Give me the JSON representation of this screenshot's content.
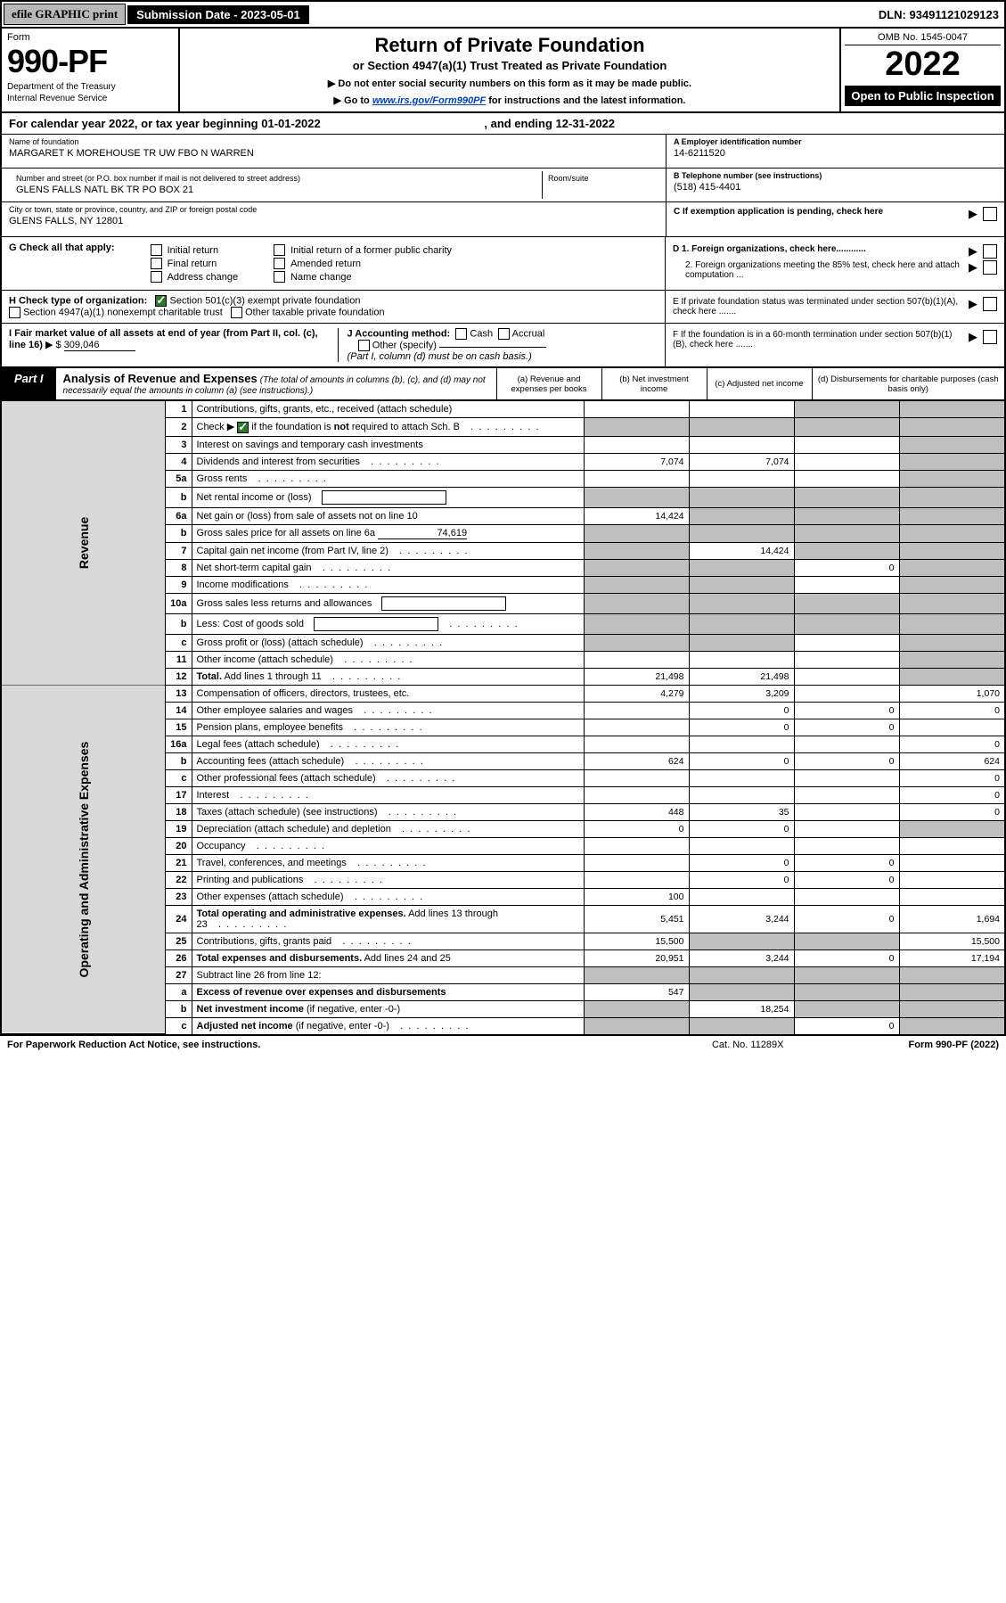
{
  "colors": {
    "black": "#000000",
    "white": "#ffffff",
    "gray_btn": "#b8b8b8",
    "gray_shade": "#bfbfbf",
    "gray_side": "#d8d8d8",
    "green_check": "#2a7a2a",
    "link_blue": "#0040b8"
  },
  "topbar": {
    "efile": "efile GRAPHIC print",
    "submission": "Submission Date - 2023-05-01",
    "dln": "DLN: 93491121029123"
  },
  "header": {
    "form_word": "Form",
    "form_num": "990-PF",
    "dept": "Department of the Treasury",
    "irs": "Internal Revenue Service",
    "title": "Return of Private Foundation",
    "subtitle": "or Section 4947(a)(1) Trust Treated as Private Foundation",
    "instr1": "▶ Do not enter social security numbers on this form as it may be made public.",
    "instr2_pre": "▶ Go to ",
    "instr2_link": "www.irs.gov/Form990PF",
    "instr2_post": " for instructions and the latest information.",
    "omb": "OMB No. 1545-0047",
    "year": "2022",
    "open": "Open to Public Inspection"
  },
  "calyear": {
    "text_pre": "For calendar year 2022, or tax year beginning ",
    "begin": "01-01-2022",
    "mid": " , and ending ",
    "end": "12-31-2022"
  },
  "foundation": {
    "name_lab": "Name of foundation",
    "name": "MARGARET K MOREHOUSE TR UW FBO N WARREN",
    "addr_lab": "Number and street (or P.O. box number if mail is not delivered to street address)",
    "addr": "GLENS FALLS NATL BK TR PO BOX 21",
    "room_lab": "Room/suite",
    "city_lab": "City or town, state or province, country, and ZIP or foreign postal code",
    "city": "GLENS FALLS, NY  12801",
    "ein_lab": "A Employer identification number",
    "ein": "14-6211520",
    "tel_lab": "B Telephone number (see instructions)",
    "tel": "(518) 415-4401",
    "c_lab": "C If exemption application is pending, check here"
  },
  "section_g": {
    "label": "G Check all that apply:",
    "initial": "Initial return",
    "final": "Final return",
    "addr_chg": "Address change",
    "initial_former": "Initial return of a former public charity",
    "amended": "Amended return",
    "name_chg": "Name change"
  },
  "section_d": {
    "d1": "D 1. Foreign organizations, check here............",
    "d2": "2. Foreign organizations meeting the 85% test, check here and attach computation ...",
    "e": "E  If private foundation status was terminated under section 507(b)(1)(A), check here .......",
    "f": "F  If the foundation is in a 60-month termination under section 507(b)(1)(B), check here ......."
  },
  "section_h": {
    "label": "H Check type of organization:",
    "c3": "Section 501(c)(3) exempt private foundation",
    "s4947": "Section 4947(a)(1) nonexempt charitable trust",
    "other_tax": "Other taxable private foundation"
  },
  "section_i": {
    "label": "I Fair market value of all assets at end of year (from Part II, col. (c), line 16)",
    "arrow": "▶ $",
    "value": "309,046"
  },
  "section_j": {
    "label": "J Accounting method:",
    "cash": "Cash",
    "accrual": "Accrual",
    "other": "Other (specify)",
    "note": "(Part I, column (d) must be on cash basis.)"
  },
  "part1": {
    "tag": "Part I",
    "title": "Analysis of Revenue and Expenses",
    "note": "(The total of amounts in columns (b), (c), and (d) may not necessarily equal the amounts in column (a) (see instructions).)",
    "col_a": "(a)  Revenue and expenses per books",
    "col_b": "(b)  Net investment income",
    "col_c": "(c)  Adjusted net income",
    "col_d": "(d)  Disbursements for charitable purposes (cash basis only)"
  },
  "side": {
    "revenue": "Revenue",
    "expenses": "Operating and Administrative Expenses"
  },
  "rows": [
    {
      "n": "1",
      "d": "Contributions, gifts, grants, etc., received (attach schedule)",
      "a": "",
      "b": "",
      "c": "shade",
      "dd": "shade"
    },
    {
      "n": "2",
      "d": "Check ▶ [✓] if the foundation is <b>not</b> required to attach Sch. B",
      "a": "shade",
      "b": "shade",
      "c": "shade",
      "dd": "shade",
      "checked": true,
      "dots": true
    },
    {
      "n": "3",
      "d": "Interest on savings and temporary cash investments",
      "a": "",
      "b": "",
      "c": "",
      "dd": "shade"
    },
    {
      "n": "4",
      "d": "Dividends and interest from securities",
      "a": "7,074",
      "b": "7,074",
      "c": "",
      "dd": "shade",
      "dots": true
    },
    {
      "n": "5a",
      "d": "Gross rents",
      "a": "",
      "b": "",
      "c": "",
      "dd": "shade",
      "dots": true
    },
    {
      "n": "b",
      "d": "Net rental income or (loss)",
      "a": "shade",
      "b": "shade",
      "c": "shade",
      "dd": "shade",
      "inline_box": true
    },
    {
      "n": "6a",
      "d": "Net gain or (loss) from sale of assets not on line 10",
      "a": "14,424",
      "b": "shade",
      "c": "shade",
      "dd": "shade"
    },
    {
      "n": "b",
      "d": "Gross sales price for all assets on line 6a",
      "a": "shade",
      "b": "shade",
      "c": "shade",
      "dd": "shade",
      "inline_val": "74,619"
    },
    {
      "n": "7",
      "d": "Capital gain net income (from Part IV, line 2)",
      "a": "shade",
      "b": "14,424",
      "c": "shade",
      "dd": "shade",
      "dots": true
    },
    {
      "n": "8",
      "d": "Net short-term capital gain",
      "a": "shade",
      "b": "shade",
      "c": "0",
      "dd": "shade",
      "dots": true
    },
    {
      "n": "9",
      "d": "Income modifications",
      "a": "shade",
      "b": "shade",
      "c": "",
      "dd": "shade",
      "dots": true
    },
    {
      "n": "10a",
      "d": "Gross sales less returns and allowances",
      "a": "shade",
      "b": "shade",
      "c": "shade",
      "dd": "shade",
      "inline_box": true
    },
    {
      "n": "b",
      "d": "Less: Cost of goods sold",
      "a": "shade",
      "b": "shade",
      "c": "shade",
      "dd": "shade",
      "inline_box": true,
      "dots": true
    },
    {
      "n": "c",
      "d": "Gross profit or (loss) (attach schedule)",
      "a": "shade",
      "b": "shade",
      "c": "",
      "dd": "shade",
      "dots": true
    },
    {
      "n": "11",
      "d": "Other income (attach schedule)",
      "a": "",
      "b": "",
      "c": "",
      "dd": "shade",
      "dots": true
    },
    {
      "n": "12",
      "d": "<b>Total.</b> Add lines 1 through 11",
      "a": "21,498",
      "b": "21,498",
      "c": "",
      "dd": "shade",
      "dots": true
    }
  ],
  "exp_rows": [
    {
      "n": "13",
      "d": "Compensation of officers, directors, trustees, etc.",
      "a": "4,279",
      "b": "3,209",
      "c": "",
      "dd": "1,070"
    },
    {
      "n": "14",
      "d": "Other employee salaries and wages",
      "a": "",
      "b": "0",
      "c": "0",
      "dd": "0",
      "dots": true
    },
    {
      "n": "15",
      "d": "Pension plans, employee benefits",
      "a": "",
      "b": "0",
      "c": "0",
      "dd": "",
      "dots": true
    },
    {
      "n": "16a",
      "d": "Legal fees (attach schedule)",
      "a": "",
      "b": "",
      "c": "",
      "dd": "0",
      "dots": true
    },
    {
      "n": "b",
      "d": "Accounting fees (attach schedule)",
      "a": "624",
      "b": "0",
      "c": "0",
      "dd": "624",
      "dots": true
    },
    {
      "n": "c",
      "d": "Other professional fees (attach schedule)",
      "a": "",
      "b": "",
      "c": "",
      "dd": "0",
      "dots": true
    },
    {
      "n": "17",
      "d": "Interest",
      "a": "",
      "b": "",
      "c": "",
      "dd": "0",
      "dots": true
    },
    {
      "n": "18",
      "d": "Taxes (attach schedule) (see instructions)",
      "a": "448",
      "b": "35",
      "c": "",
      "dd": "0",
      "dots": true
    },
    {
      "n": "19",
      "d": "Depreciation (attach schedule) and depletion",
      "a": "0",
      "b": "0",
      "c": "",
      "dd": "shade",
      "dots": true
    },
    {
      "n": "20",
      "d": "Occupancy",
      "a": "",
      "b": "",
      "c": "",
      "dd": "",
      "dots": true
    },
    {
      "n": "21",
      "d": "Travel, conferences, and meetings",
      "a": "",
      "b": "0",
      "c": "0",
      "dd": "",
      "dots": true
    },
    {
      "n": "22",
      "d": "Printing and publications",
      "a": "",
      "b": "0",
      "c": "0",
      "dd": "",
      "dots": true
    },
    {
      "n": "23",
      "d": "Other expenses (attach schedule)",
      "a": "100",
      "b": "",
      "c": "",
      "dd": "",
      "dots": true
    },
    {
      "n": "24",
      "d": "<b>Total operating and administrative expenses.</b> Add lines 13 through 23",
      "a": "5,451",
      "b": "3,244",
      "c": "0",
      "dd": "1,694",
      "dots": true
    },
    {
      "n": "25",
      "d": "Contributions, gifts, grants paid",
      "a": "15,500",
      "b": "shade",
      "c": "shade",
      "dd": "15,500",
      "dots": true
    },
    {
      "n": "26",
      "d": "<b>Total expenses and disbursements.</b> Add lines 24 and 25",
      "a": "20,951",
      "b": "3,244",
      "c": "0",
      "dd": "17,194"
    },
    {
      "n": "27",
      "d": "Subtract line 26 from line 12:",
      "a": "shade",
      "b": "shade",
      "c": "shade",
      "dd": "shade"
    },
    {
      "n": "a",
      "d": "<b>Excess of revenue over expenses and disbursements</b>",
      "a": "547",
      "b": "shade",
      "c": "shade",
      "dd": "shade"
    },
    {
      "n": "b",
      "d": "<b>Net investment income</b> (if negative, enter -0-)",
      "a": "shade",
      "b": "18,254",
      "c": "shade",
      "dd": "shade"
    },
    {
      "n": "c",
      "d": "<b>Adjusted net income</b> (if negative, enter -0-)",
      "a": "shade",
      "b": "shade",
      "c": "0",
      "dd": "shade",
      "dots": true
    }
  ],
  "footer": {
    "paperwork": "For Paperwork Reduction Act Notice, see instructions.",
    "cat": "Cat. No. 11289X",
    "form": "Form 990-PF (2022)"
  },
  "layout": {
    "col_widths": {
      "side": 26,
      "ln": 34,
      "desc": 460,
      "amt": 118
    },
    "font_base": 11
  }
}
